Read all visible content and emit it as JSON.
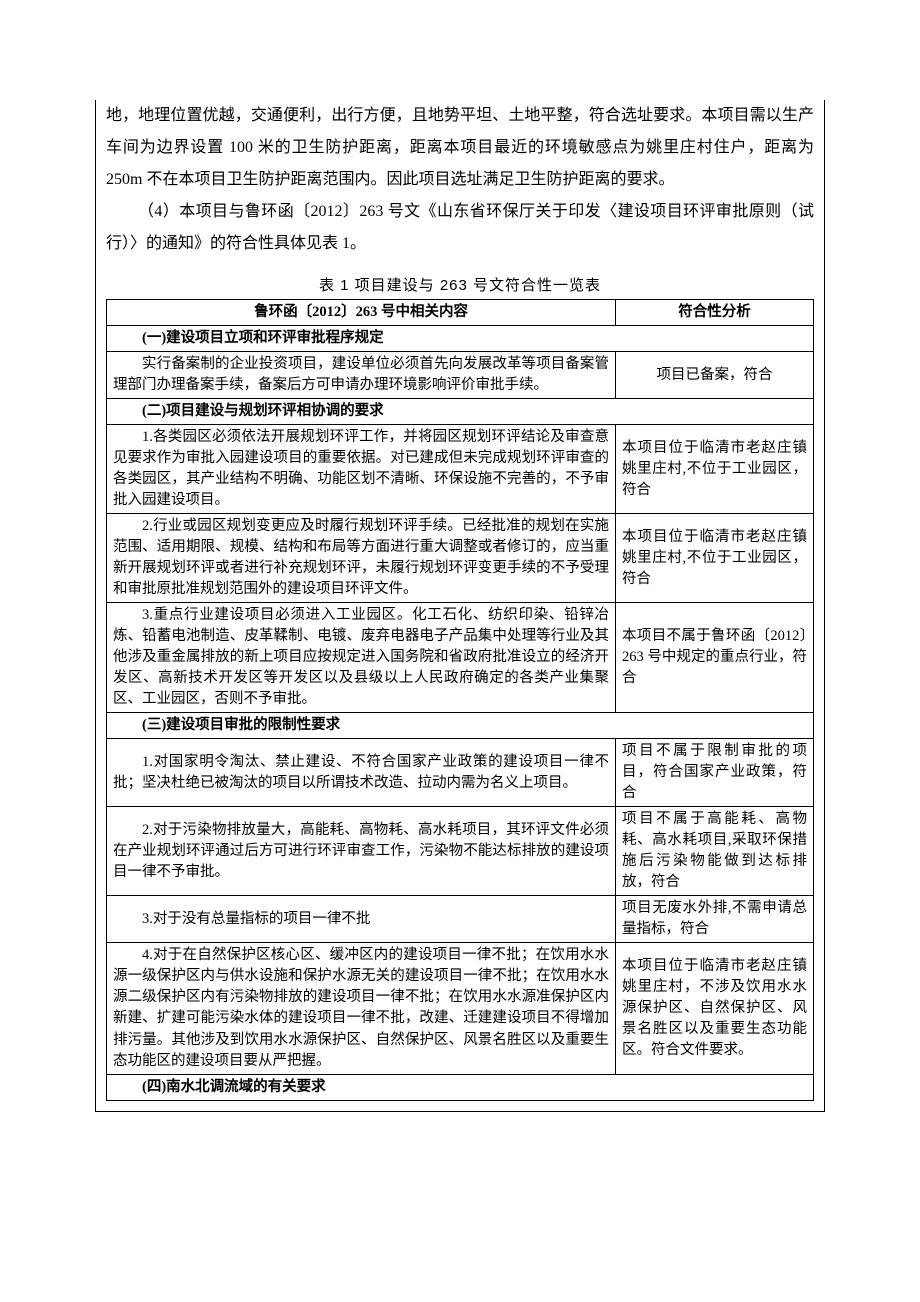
{
  "paragraphs": {
    "p1": "地，地理位置优越，交通便利，出行方便，且地势平坦、土地平整，符合选址要求。本项目需以生产车间为边界设置 100 米的卫生防护距离，距离本项目最近的环境敏感点为姚里庄村住户，距离为 250m 不在本项目卫生防护距离范围内。因此项目选址满足卫生防护距离的要求。",
    "p2": "（4）本项目与鲁环函〔2012〕263 号文《山东省环保厅关于印发〈建设项目环评审批原则（试行）〉的通知》的符合性具体见表 1。"
  },
  "table": {
    "caption": "表 1   项目建设与 263 号文符合性一览表",
    "header_left": "鲁环函〔2012〕263 号中相关内容",
    "header_right": "符合性分析",
    "sections": [
      {
        "title": "(一)建设项目立项和环评审批程序规定",
        "rows": [
          {
            "rule": "实行备案制的企业投资项目，建设单位必须首先向发展改革等项目备案管理部门办理备案手续，备案后方可申请办理环境影响评价审批手续。",
            "analysis": "项目已备案，符合",
            "analysis_align": "center"
          }
        ]
      },
      {
        "title": "(二)项目建设与规划环评相协调的要求",
        "rows": [
          {
            "rule": "1.各类园区必须依法开展规划环评工作，并将园区规划环评结论及审查意见要求作为审批入园建设项目的重要依据。对已建成但未完成规划环评审查的各类园区，其产业结构不明确、功能区划不清晰、环保设施不完善的，不予审批入园建设项目。",
            "analysis": "本项目位于临清市老赵庄镇姚里庄村,不位于工业园区，符合"
          },
          {
            "rule": "2.行业或园区规划变更应及时履行规划环评手续。已经批准的规划在实施范围、适用期限、规模、结构和布局等方面进行重大调整或者修订的，应当重新开展规划环评或者进行补充规划环评，未履行规划环评变更手续的不予受理和审批原批准规划范围外的建设项目环评文件。",
            "analysis": "本项目位于临清市老赵庄镇姚里庄村,不位于工业园区，符合"
          },
          {
            "rule": "3.重点行业建设项目必须进入工业园区。化工石化、纺织印染、铅锌冶炼、铅蓄电池制造、皮革鞣制、电镀、废弃电器电子产品集中处理等行业及其他涉及重金属排放的新上项目应按规定进入国务院和省政府批准设立的经济开发区、高新技术开发区等开发区以及县级以上人民政府确定的各类产业集聚区、工业园区，否则不予审批。",
            "analysis": "本项目不属于鲁环函〔2012〕263 号中规定的重点行业，符合"
          }
        ]
      },
      {
        "title": "(三)建设项目审批的限制性要求",
        "rows": [
          {
            "rule": "1.对国家明令淘汰、禁止建设、不符合国家产业政策的建设项目一律不批；坚决杜绝已被淘汰的项目以所谓技术改造、拉动内需为名义上项目。",
            "analysis": "项目不属于限制审批的项目，符合国家产业政策，符合"
          },
          {
            "rule": "2.对于污染物排放量大，高能耗、高物耗、高水耗项目，其环评文件必须在产业规划环评通过后方可进行环评审查工作，污染物不能达标排放的建设项目一律不予审批。",
            "analysis": "项目不属于高能耗、高物耗、高水耗项目,采取环保措施后污染物能做到达标排放，符合"
          },
          {
            "rule": "3.对于没有总量指标的项目一律不批",
            "analysis": "项目无废水外排,不需申请总量指标，符合"
          },
          {
            "rule": "4.对于在自然保护区核心区、缓冲区内的建设项目一律不批；在饮用水水源一级保护区内与供水设施和保护水源无关的建设项目一律不批；在饮用水水源二级保护区内有污染物排放的建设项目一律不批；在饮用水水源准保护区内新建、扩建可能污染水体的建设项目一律不批，改建、迁建建设项目不得增加排污量。其他涉及到饮用水水源保护区、自然保护区、风景名胜区以及重要生态功能区的建设项目要从严把握。",
            "analysis": "本项目位于临清市老赵庄镇姚里庄村，不涉及饮用水水源保护区、自然保护区、风景名胜区以及重要生态功能区。符合文件要求。"
          }
        ]
      },
      {
        "title": "(四)南水北调流域的有关要求",
        "rows": []
      }
    ]
  }
}
